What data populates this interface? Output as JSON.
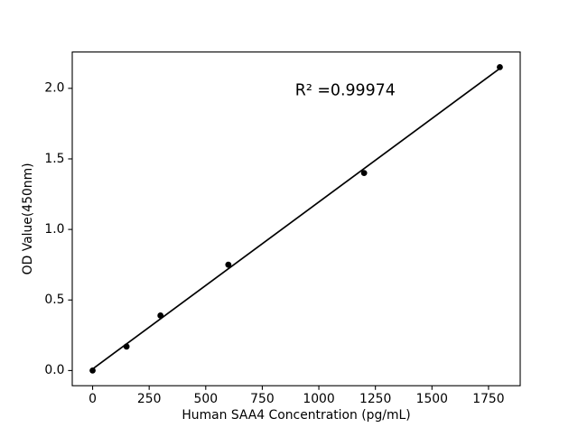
{
  "chart_data": {
    "type": "scatter",
    "title": "",
    "xlabel": "Human SAA4 Concentration (pg/mL)",
    "ylabel": "OD Value(450nm)",
    "points": [
      [
        0,
        0.0
      ],
      [
        150,
        0.17
      ],
      [
        300,
        0.39
      ],
      [
        600,
        0.75
      ],
      [
        1200,
        1.4
      ],
      [
        1800,
        2.15
      ]
    ],
    "fit_line": true,
    "x_ticks": [
      0,
      250,
      500,
      750,
      1000,
      1250,
      1500,
      1750
    ],
    "y_ticks": [
      "0.0",
      "0.5",
      "1.0",
      "1.5",
      "2.0"
    ],
    "xlim": [
      -90,
      1890
    ],
    "ylim": [
      -0.1075,
      2.2575
    ],
    "annotation": {
      "text": "R² =0.99974",
      "x": 895,
      "y": 1.95
    },
    "legend": null,
    "grid": false,
    "colors": {
      "marker": "#000000",
      "line": "#000000",
      "text": "#000000",
      "background": "#ffffff"
    }
  }
}
